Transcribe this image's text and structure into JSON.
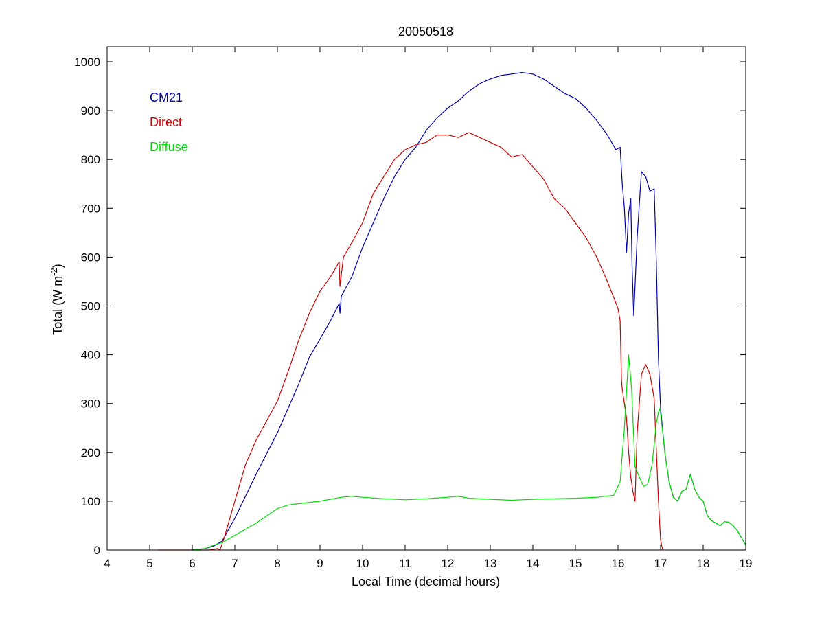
{
  "chart_data": {
    "type": "line",
    "title": "20050518",
    "xlabel": "Local Time (decimal hours)",
    "ylabel": "Total (W m",
    "ylabel_superscript": "-2",
    "ylabel_suffix": ")",
    "xlim": [
      4,
      19
    ],
    "ylim": [
      0,
      1000
    ],
    "xticks": [
      "4",
      "5",
      "6",
      "7",
      "8",
      "9",
      "10",
      "11",
      "12",
      "13",
      "14",
      "15",
      "16",
      "17",
      "18",
      "19"
    ],
    "yticks": [
      "0",
      "100",
      "200",
      "300",
      "400",
      "500",
      "600",
      "700",
      "800",
      "900",
      "1000"
    ],
    "grid": false,
    "legend_position": "top-left",
    "series": [
      {
        "name": "CM21",
        "color": "#0000aa",
        "points": [
          [
            6.0,
            0
          ],
          [
            6.3,
            3
          ],
          [
            6.5,
            8
          ],
          [
            6.7,
            18
          ],
          [
            7.0,
            65
          ],
          [
            7.25,
            110
          ],
          [
            7.5,
            155
          ],
          [
            7.75,
            198
          ],
          [
            8.0,
            240
          ],
          [
            8.25,
            290
          ],
          [
            8.5,
            340
          ],
          [
            8.75,
            395
          ],
          [
            9.0,
            432
          ],
          [
            9.25,
            470
          ],
          [
            9.45,
            505
          ],
          [
            9.47,
            485
          ],
          [
            9.5,
            520
          ],
          [
            9.75,
            560
          ],
          [
            10.0,
            620
          ],
          [
            10.25,
            670
          ],
          [
            10.5,
            720
          ],
          [
            10.75,
            765
          ],
          [
            11.0,
            800
          ],
          [
            11.25,
            825
          ],
          [
            11.5,
            860
          ],
          [
            11.75,
            885
          ],
          [
            12.0,
            905
          ],
          [
            12.25,
            920
          ],
          [
            12.5,
            940
          ],
          [
            12.75,
            955
          ],
          [
            13.0,
            965
          ],
          [
            13.25,
            972
          ],
          [
            13.5,
            975
          ],
          [
            13.75,
            978
          ],
          [
            14.0,
            975
          ],
          [
            14.25,
            965
          ],
          [
            14.5,
            950
          ],
          [
            14.75,
            935
          ],
          [
            15.0,
            925
          ],
          [
            15.25,
            905
          ],
          [
            15.5,
            880
          ],
          [
            15.75,
            850
          ],
          [
            15.95,
            820
          ],
          [
            16.05,
            825
          ],
          [
            16.1,
            750
          ],
          [
            16.15,
            700
          ],
          [
            16.2,
            610
          ],
          [
            16.25,
            690
          ],
          [
            16.3,
            720
          ],
          [
            16.33,
            580
          ],
          [
            16.37,
            480
          ],
          [
            16.45,
            640
          ],
          [
            16.55,
            775
          ],
          [
            16.65,
            765
          ],
          [
            16.75,
            735
          ],
          [
            16.85,
            740
          ],
          [
            16.9,
            590
          ],
          [
            16.95,
            390
          ],
          [
            17.0,
            290
          ],
          [
            17.1,
            200
          ],
          [
            17.2,
            140
          ],
          [
            17.3,
            108
          ],
          [
            17.4,
            100
          ],
          [
            17.5,
            120
          ],
          [
            17.6,
            125
          ],
          [
            17.7,
            155
          ],
          [
            17.8,
            125
          ],
          [
            17.9,
            108
          ],
          [
            18.0,
            100
          ],
          [
            18.1,
            70
          ],
          [
            18.2,
            60
          ],
          [
            18.3,
            55
          ],
          [
            18.4,
            50
          ],
          [
            18.5,
            58
          ],
          [
            18.6,
            57
          ],
          [
            18.7,
            50
          ],
          [
            18.8,
            40
          ],
          [
            18.9,
            25
          ],
          [
            19.0,
            10
          ]
        ]
      },
      {
        "name": "Direct",
        "color": "#cc0000",
        "points": [
          [
            5.2,
            0
          ],
          [
            5.5,
            0
          ],
          [
            6.4,
            0
          ],
          [
            6.6,
            3
          ],
          [
            6.65,
            0
          ],
          [
            6.75,
            25
          ],
          [
            7.0,
            100
          ],
          [
            7.25,
            175
          ],
          [
            7.5,
            225
          ],
          [
            7.75,
            265
          ],
          [
            8.0,
            305
          ],
          [
            8.25,
            365
          ],
          [
            8.5,
            430
          ],
          [
            8.75,
            485
          ],
          [
            9.0,
            530
          ],
          [
            9.25,
            560
          ],
          [
            9.45,
            590
          ],
          [
            9.47,
            540
          ],
          [
            9.55,
            600
          ],
          [
            9.75,
            630
          ],
          [
            10.0,
            670
          ],
          [
            10.25,
            730
          ],
          [
            10.5,
            765
          ],
          [
            10.75,
            800
          ],
          [
            11.0,
            820
          ],
          [
            11.25,
            830
          ],
          [
            11.5,
            835
          ],
          [
            11.75,
            850
          ],
          [
            12.0,
            850
          ],
          [
            12.25,
            845
          ],
          [
            12.5,
            855
          ],
          [
            12.75,
            845
          ],
          [
            13.0,
            835
          ],
          [
            13.25,
            825
          ],
          [
            13.5,
            805
          ],
          [
            13.75,
            810
          ],
          [
            14.0,
            785
          ],
          [
            14.25,
            760
          ],
          [
            14.5,
            720
          ],
          [
            14.75,
            700
          ],
          [
            15.0,
            670
          ],
          [
            15.25,
            640
          ],
          [
            15.5,
            600
          ],
          [
            15.75,
            550
          ],
          [
            16.0,
            495
          ],
          [
            16.05,
            470
          ],
          [
            16.08,
            350
          ],
          [
            16.1,
            330
          ],
          [
            16.15,
            300
          ],
          [
            16.2,
            270
          ],
          [
            16.25,
            200
          ],
          [
            16.3,
            150
          ],
          [
            16.35,
            120
          ],
          [
            16.4,
            100
          ],
          [
            16.45,
            240
          ],
          [
            16.55,
            360
          ],
          [
            16.65,
            380
          ],
          [
            16.75,
            360
          ],
          [
            16.85,
            310
          ],
          [
            16.95,
            100
          ],
          [
            17.0,
            20
          ],
          [
            17.05,
            0
          ]
        ]
      },
      {
        "name": "Diffuse",
        "color": "#00dd00",
        "points": [
          [
            6.0,
            0
          ],
          [
            6.3,
            3
          ],
          [
            6.5,
            10
          ],
          [
            6.7,
            15
          ],
          [
            7.0,
            30
          ],
          [
            7.5,
            55
          ],
          [
            8.0,
            85
          ],
          [
            8.25,
            92
          ],
          [
            8.5,
            95
          ],
          [
            9.0,
            100
          ],
          [
            9.5,
            108
          ],
          [
            9.75,
            110
          ],
          [
            10.0,
            108
          ],
          [
            10.5,
            105
          ],
          [
            11.0,
            103
          ],
          [
            11.5,
            105
          ],
          [
            12.0,
            108
          ],
          [
            12.25,
            110
          ],
          [
            12.5,
            106
          ],
          [
            13.0,
            104
          ],
          [
            13.5,
            102
          ],
          [
            14.0,
            104
          ],
          [
            14.5,
            105
          ],
          [
            15.0,
            106
          ],
          [
            15.5,
            108
          ],
          [
            15.9,
            112
          ],
          [
            16.05,
            140
          ],
          [
            16.15,
            250
          ],
          [
            16.25,
            400
          ],
          [
            16.32,
            330
          ],
          [
            16.4,
            170
          ],
          [
            16.5,
            150
          ],
          [
            16.6,
            130
          ],
          [
            16.7,
            135
          ],
          [
            16.8,
            175
          ],
          [
            16.9,
            260
          ],
          [
            16.97,
            290
          ],
          [
            17.0,
            280
          ],
          [
            17.1,
            200
          ],
          [
            17.2,
            140
          ],
          [
            17.3,
            108
          ],
          [
            17.4,
            100
          ],
          [
            17.5,
            120
          ],
          [
            17.6,
            125
          ],
          [
            17.7,
            155
          ],
          [
            17.8,
            125
          ],
          [
            17.9,
            108
          ],
          [
            18.0,
            100
          ],
          [
            18.1,
            70
          ],
          [
            18.2,
            60
          ],
          [
            18.3,
            55
          ],
          [
            18.4,
            50
          ],
          [
            18.5,
            58
          ],
          [
            18.6,
            57
          ],
          [
            18.7,
            50
          ],
          [
            18.8,
            40
          ],
          [
            18.9,
            25
          ],
          [
            19.0,
            10
          ]
        ]
      }
    ]
  }
}
